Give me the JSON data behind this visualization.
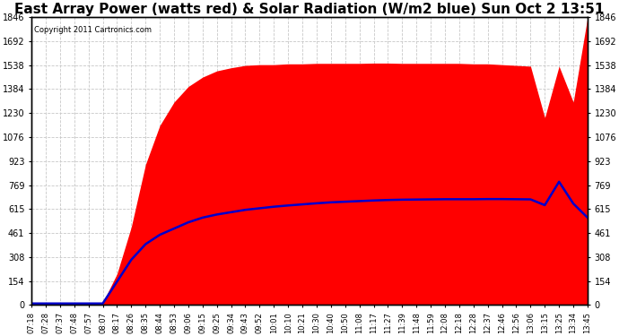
{
  "title": "East Array Power (watts red) & Solar Radiation (W/m2 blue) Sun Oct 2 13:51",
  "copyright": "Copyright 2011 Cartronics.com",
  "y_ticks": [
    0.0,
    153.8,
    307.6,
    461.4,
    615.2,
    768.9,
    922.7,
    1076.5,
    1230.3,
    1384.1,
    1537.9,
    1691.7,
    1845.5
  ],
  "y_max": 1845.5,
  "y_min": 0.0,
  "x_labels": [
    "07:18",
    "07:28",
    "07:37",
    "07:48",
    "07:57",
    "08:07",
    "08:17",
    "08:26",
    "08:35",
    "08:44",
    "08:53",
    "09:06",
    "09:15",
    "09:25",
    "09:34",
    "09:43",
    "09:52",
    "10:01",
    "10:10",
    "10:21",
    "10:30",
    "10:40",
    "10:50",
    "11:08",
    "11:17",
    "11:27",
    "11:39",
    "11:48",
    "11:59",
    "12:08",
    "12:18",
    "12:28",
    "12:37",
    "12:46",
    "12:56",
    "13:06",
    "13:15",
    "13:25",
    "13:34",
    "13:45"
  ],
  "background_color": "#ffffff",
  "plot_bg_color": "#ffffff",
  "grid_color": "#c8c8c8",
  "red_color": "#ff0000",
  "blue_color": "#0000cc",
  "title_fontsize": 11,
  "red_data": [
    15,
    15,
    15,
    15,
    15,
    15,
    200,
    500,
    900,
    1150,
    1300,
    1400,
    1460,
    1500,
    1520,
    1535,
    1540,
    1540,
    1545,
    1545,
    1548,
    1548,
    1548,
    1548,
    1550,
    1550,
    1548,
    1548,
    1548,
    1548,
    1548,
    1545,
    1545,
    1540,
    1535,
    1530,
    1200,
    1530,
    1300,
    1845
  ],
  "blue_data": [
    10,
    10,
    10,
    10,
    10,
    10,
    150,
    290,
    390,
    450,
    490,
    530,
    560,
    580,
    595,
    610,
    620,
    630,
    638,
    645,
    652,
    658,
    662,
    666,
    670,
    673,
    675,
    676,
    677,
    678,
    678,
    678,
    679,
    679,
    678,
    677,
    640,
    790,
    650,
    560
  ]
}
